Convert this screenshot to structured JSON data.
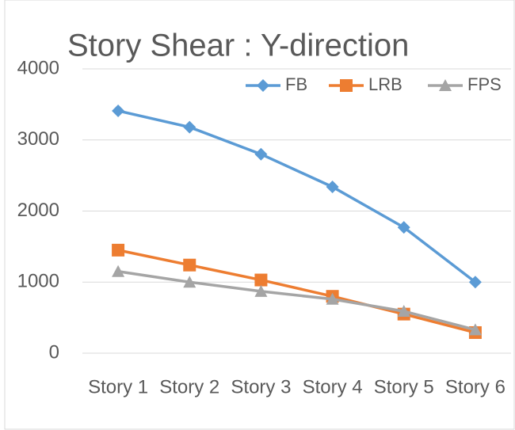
{
  "chart_data": {
    "type": "line",
    "title": "Story Shear : Y-direction",
    "categories": [
      "Story 1",
      "Story 2",
      "Story 3",
      "Story 4",
      "Story 5",
      "Story 6"
    ],
    "series": [
      {
        "name": "FB",
        "color": "#5b9bd5",
        "marker": "diamond",
        "values": [
          3410,
          3180,
          2800,
          2340,
          1770,
          1000
        ]
      },
      {
        "name": "LRB",
        "color": "#ed7d31",
        "marker": "square",
        "values": [
          1450,
          1240,
          1030,
          800,
          550,
          290
        ]
      },
      {
        "name": "FPS",
        "color": "#a5a5a5",
        "marker": "triangle",
        "values": [
          1150,
          1000,
          870,
          760,
          590,
          330
        ]
      }
    ],
    "ylim": [
      0,
      4000
    ],
    "yticks": [
      0,
      1000,
      2000,
      3000,
      4000
    ],
    "grid": true,
    "legend": "top-right"
  }
}
